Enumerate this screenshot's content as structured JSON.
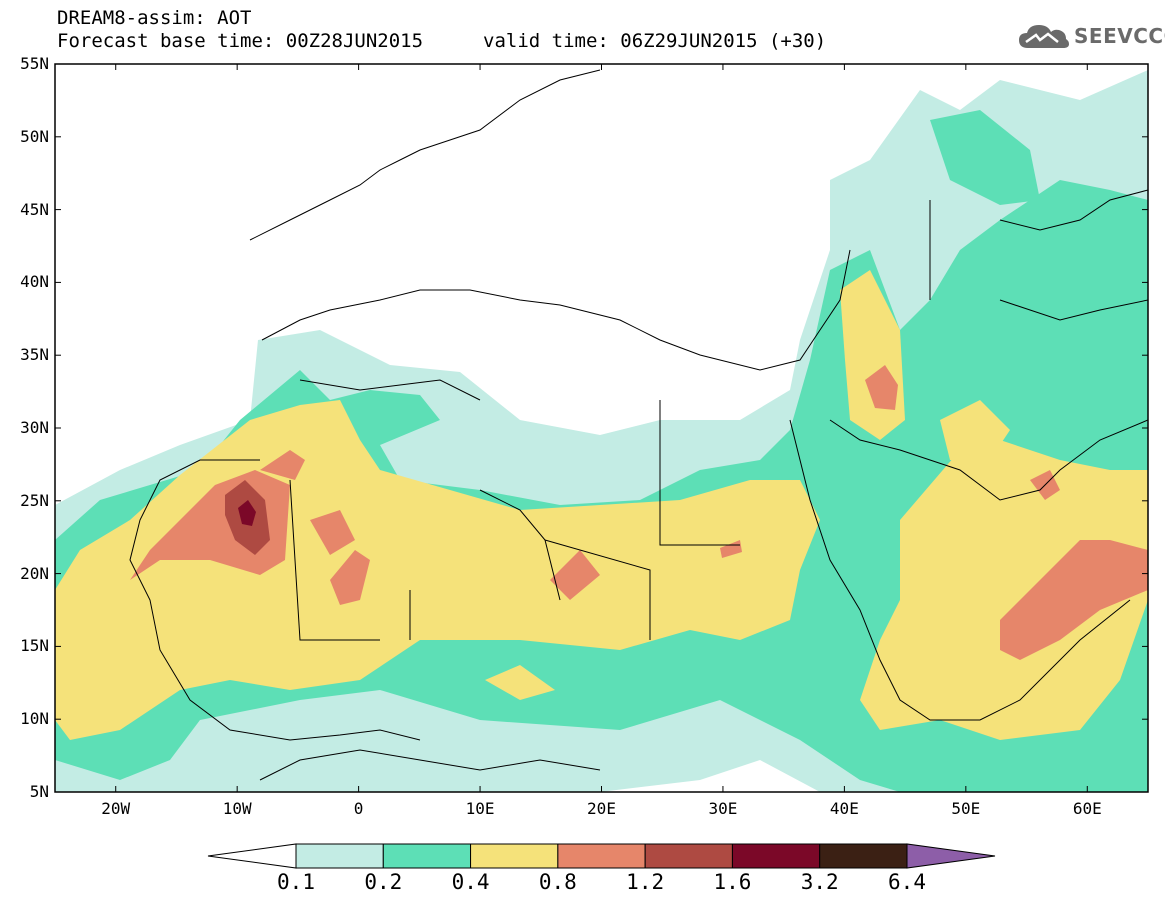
{
  "header": {
    "line1": "DREAM8-assim: AOT",
    "base_time": "Forecast base time: 00Z28JUN2015",
    "valid_time": "valid time: 06Z29JUN2015 (+30)"
  },
  "logo": {
    "text": "SEEVCCC",
    "icon": "cloud-icon",
    "color": "#6a6a6a"
  },
  "map": {
    "lon_range": [
      -25,
      65
    ],
    "lat_range": [
      5,
      55
    ],
    "lat_labels": [
      "55N",
      "50N",
      "45N",
      "40N",
      "35N",
      "30N",
      "25N",
      "20N",
      "15N",
      "10N",
      "5N"
    ],
    "lon_labels": [
      "20W",
      "10W",
      "0",
      "10E",
      "20E",
      "30E",
      "40E",
      "50E",
      "60E"
    ]
  },
  "colorbar": {
    "labels": [
      "0.1",
      "0.2",
      "0.4",
      "0.8",
      "1.2",
      "1.6",
      "3.2",
      "6.4"
    ],
    "colors": [
      "#ffffff",
      "#c3ece4",
      "#5ddfb6",
      "#f5e27a",
      "#e6866a",
      "#ae4a42",
      "#7b0828",
      "#3b2014",
      "#8d5ea8"
    ]
  }
}
